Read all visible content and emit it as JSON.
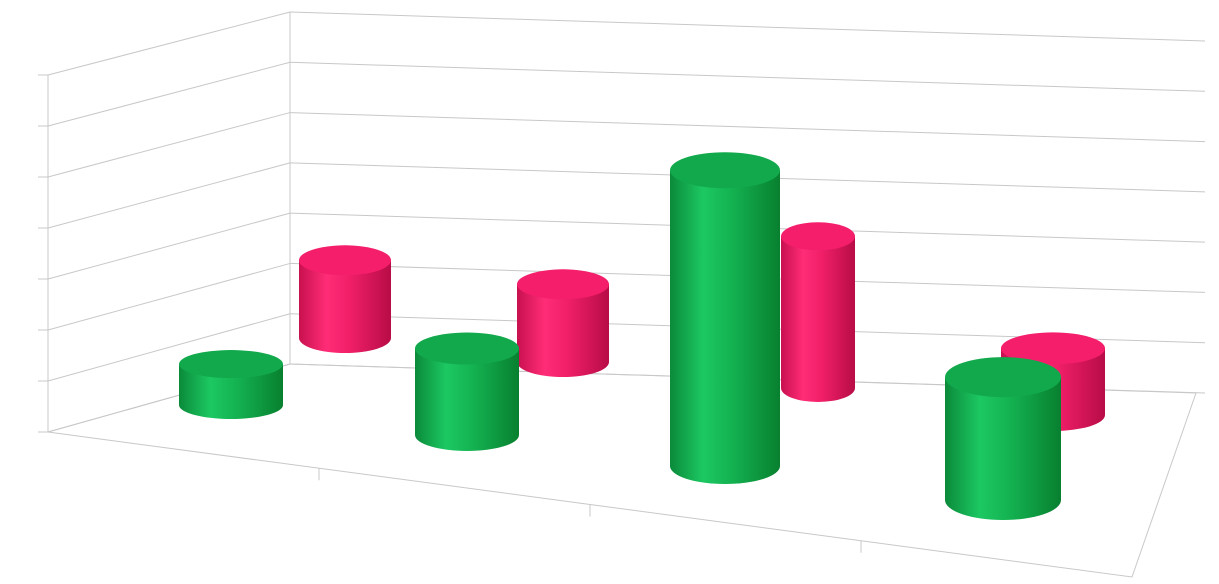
{
  "chart_data": {
    "type": "bar",
    "style": "3d-cylinder",
    "title": "",
    "xlabel": "",
    "ylabel": "",
    "categories": [
      "",
      "",
      "",
      ""
    ],
    "series": [
      {
        "values": [
          0.9,
          1.9,
          6.5,
          2.7
        ],
        "color": "#15b856",
        "depth": "front"
      },
      {
        "values": [
          2.1,
          2.1,
          4.1,
          1.8
        ],
        "color": "#f0246a",
        "depth": "back"
      }
    ],
    "ylim": [
      0,
      8
    ],
    "grid": true,
    "legend": "none"
  }
}
